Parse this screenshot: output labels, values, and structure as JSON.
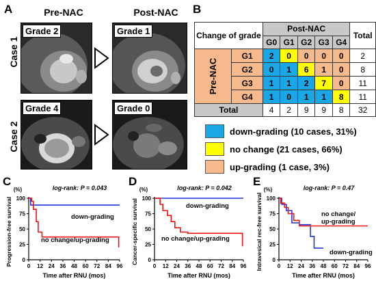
{
  "panels": {
    "A": "A",
    "B": "B",
    "C": "C",
    "D": "D",
    "E": "E"
  },
  "panelA": {
    "pre_title": "Pre-NAC",
    "post_title": "Post-NAC",
    "case1": "Case 1",
    "case2": "Case 2",
    "case1_pre_grade": "Grade 2",
    "case1_post_grade": "Grade 1",
    "case2_pre_grade": "Grade 4",
    "case2_post_grade": "Grade 0"
  },
  "panelB": {
    "corner_label": "Change of grade",
    "col_group": "Post-NAC",
    "row_group": "Pre-NAC",
    "total_label": "Total",
    "cols": [
      "G0",
      "G1",
      "G2",
      "G3",
      "G4"
    ],
    "rows": [
      {
        "label": "G1",
        "cells": [
          "2",
          "0",
          "0",
          "0",
          "0"
        ],
        "kinds": [
          "down",
          "same",
          "up",
          "up",
          "up"
        ],
        "total": "2"
      },
      {
        "label": "G2",
        "cells": [
          "0",
          "1",
          "6",
          "1",
          "0"
        ],
        "kinds": [
          "down",
          "down",
          "same",
          "up",
          "up"
        ],
        "total": "8"
      },
      {
        "label": "G3",
        "cells": [
          "1",
          "1",
          "2",
          "7",
          "0"
        ],
        "kinds": [
          "down",
          "down",
          "down",
          "same",
          "up"
        ],
        "total": "11"
      },
      {
        "label": "G4",
        "cells": [
          "1",
          "0",
          "1",
          "1",
          "8"
        ],
        "kinds": [
          "down",
          "down",
          "down",
          "down",
          "same"
        ],
        "total": "11"
      }
    ],
    "col_totals": [
      "4",
      "2",
      "9",
      "9",
      "8"
    ],
    "grand_total": "32",
    "colors": {
      "down": "#1aa7e8",
      "same": "#ffff00",
      "up": "#f5b98c",
      "header": "#c8c8c8"
    },
    "legend": [
      {
        "kind": "down",
        "label": "down-grading (10 cases, 31%)"
      },
      {
        "kind": "same",
        "label": "no change (21 cases, 66%)"
      },
      {
        "kind": "up",
        "label": "up-grading (1 case, 3%)"
      }
    ]
  },
  "chart_data": [
    {
      "type": "line",
      "panel": "C",
      "ylabel": "Progression-free survival",
      "yunit": "(%)",
      "xlabel": "Time after RNU (mos)",
      "annotation": "log-rank: P = 0.043",
      "xticks": [
        0,
        12,
        24,
        36,
        48,
        60,
        72,
        84,
        96
      ],
      "yticks": [
        0,
        25,
        50,
        75,
        100
      ],
      "xlim": [
        0,
        96
      ],
      "ylim": [
        0,
        100
      ],
      "series": [
        {
          "name": "down-grading",
          "color": "#2233dd",
          "x": [
            0,
            2,
            2,
            96
          ],
          "y": [
            100,
            100,
            89,
            89
          ]
        },
        {
          "name": "no change/up-grading",
          "color": "#ee1111",
          "x": [
            0,
            3,
            3,
            5,
            5,
            8,
            8,
            10,
            10,
            14,
            14,
            36,
            36,
            95,
            95
          ],
          "y": [
            100,
            100,
            95,
            95,
            82,
            82,
            62,
            62,
            45,
            45,
            37,
            37,
            37,
            37,
            20
          ]
        }
      ]
    },
    {
      "type": "line",
      "panel": "D",
      "ylabel": "Cancer-specific survival",
      "yunit": "(%)",
      "xlabel": "Time after RNU (mos)",
      "annotation": "log-rank: P = 0.042",
      "xticks": [
        0,
        12,
        24,
        36,
        48,
        60,
        72,
        84,
        96
      ],
      "yticks": [
        0,
        25,
        50,
        75,
        100
      ],
      "xlim": [
        0,
        96
      ],
      "ylim": [
        0,
        100
      ],
      "series": [
        {
          "name": "down-grading",
          "color": "#2233dd",
          "x": [
            0,
            96
          ],
          "y": [
            100,
            100
          ]
        },
        {
          "name": "no change/up-grading",
          "color": "#ee1111",
          "x": [
            0,
            6,
            6,
            9,
            9,
            14,
            14,
            18,
            18,
            22,
            22,
            28,
            28,
            36,
            36,
            95,
            95
          ],
          "y": [
            100,
            100,
            90,
            90,
            80,
            80,
            72,
            72,
            62,
            62,
            52,
            52,
            45,
            45,
            43,
            43,
            22
          ]
        }
      ]
    },
    {
      "type": "line",
      "panel": "E",
      "ylabel": "Intravesical rec-free survival",
      "yunit": "(%)",
      "xlabel": "Time after RNU (mos)",
      "annotation": "log-rank: P = 0.47",
      "xticks": [
        0,
        12,
        24,
        36,
        48,
        60,
        72,
        84,
        96
      ],
      "yticks": [
        0,
        25,
        50,
        75,
        100
      ],
      "xlim": [
        0,
        96
      ],
      "ylim": [
        0,
        100
      ],
      "series": [
        {
          "name": "down-grading",
          "color": "#2233dd",
          "x": [
            0,
            3,
            3,
            8,
            8,
            14,
            14,
            22,
            22,
            34,
            34,
            38,
            38,
            48
          ],
          "y": [
            100,
            100,
            90,
            90,
            80,
            80,
            60,
            60,
            57,
            57,
            38,
            38,
            19,
            19
          ]
        },
        {
          "name": "no change/up-grading",
          "color": "#ee1111",
          "x": [
            0,
            2,
            2,
            6,
            6,
            10,
            10,
            16,
            16,
            22,
            22,
            96
          ],
          "y": [
            100,
            100,
            92,
            92,
            85,
            85,
            75,
            75,
            64,
            64,
            55,
            55
          ]
        }
      ],
      "labels": [
        "no change/",
        "up-grading",
        "down-grading"
      ]
    }
  ]
}
